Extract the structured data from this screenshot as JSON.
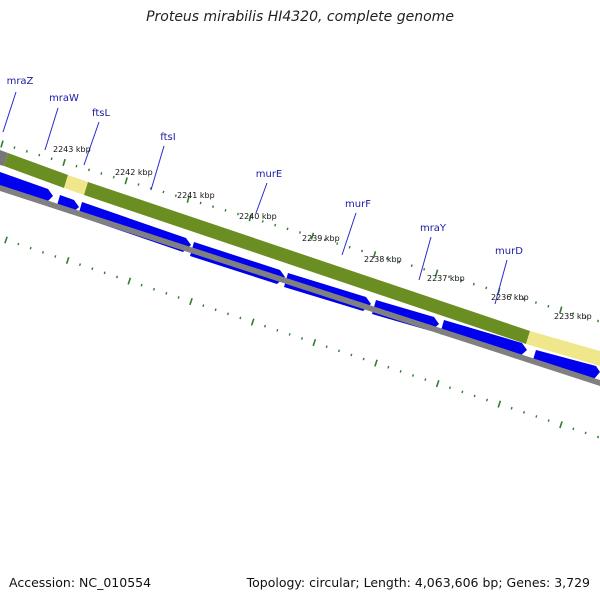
{
  "title": "Proteus mirabilis HI4320, complete genome",
  "footer": {
    "accession": "Accession: NC_010554",
    "summary": "Topology: circular; Length: 4,063,606 bp; Genes: 3,729"
  },
  "genes": [
    "mraZ",
    "mraW",
    "ftsL",
    "ftsI",
    "murE",
    "murF",
    "mraY",
    "murD"
  ],
  "kbp_ticks": [
    "2243 kbp",
    "2242 kbp",
    "2241 kbp",
    "2240 kbp",
    "2239 kbp",
    "2238 kbp",
    "2237 kbp",
    "2236 kbp",
    "2235 kbp"
  ],
  "colors": {
    "cds": "#0000ee",
    "operon": "#6b8e23",
    "intergenic": "#f0e68c",
    "backbone": "#808080",
    "ticks": "#2e7d32",
    "label": "#1a1aa6"
  }
}
